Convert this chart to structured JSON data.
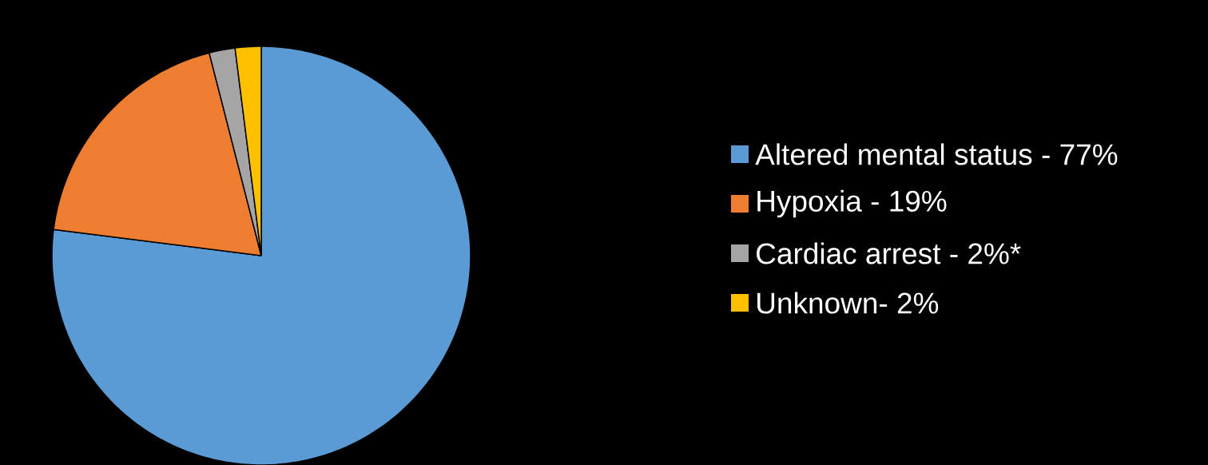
{
  "chart_data": {
    "type": "pie",
    "categories": [
      "Altered mental status - 77%",
      "Hypoxia - 19%",
      "Cardiac arrest - 2%*",
      "Unknown- 2%"
    ],
    "values": [
      77,
      19,
      2,
      2
    ],
    "colors": [
      "#5b9bd5",
      "#ed7d31",
      "#a5a5a5",
      "#ffc000"
    ],
    "legend": "right"
  }
}
